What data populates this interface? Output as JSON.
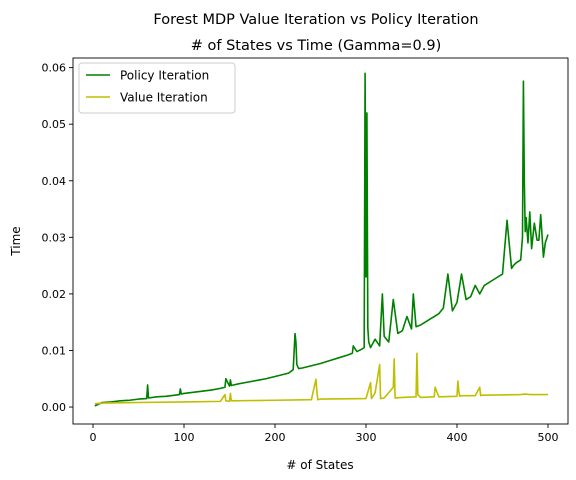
{
  "chart_data": {
    "type": "line",
    "title": "Forest MDP Value Iteration vs Policy Iteration",
    "subtitle": "# of States vs Time (Gamma=0.9)",
    "xlabel": "# of States",
    "ylabel": "Time",
    "xlim": [
      -22,
      522
    ],
    "ylim": [
      -0.003,
      0.0617
    ],
    "x_ticks": [
      0,
      100,
      200,
      300,
      400,
      500
    ],
    "x_tick_labels": [
      "0",
      "100",
      "200",
      "300",
      "400",
      "500"
    ],
    "y_ticks": [
      0.0,
      0.01,
      0.02,
      0.03,
      0.04,
      0.05,
      0.06
    ],
    "y_tick_labels": [
      "0.00",
      "0.01",
      "0.02",
      "0.03",
      "0.04",
      "0.05",
      "0.06"
    ],
    "grid": false,
    "legend": "top-left",
    "series": [
      {
        "name": "Policy Iteration",
        "color": "#008000",
        "x": [
          2,
          10,
          20,
          30,
          40,
          50,
          59,
          60,
          61,
          70,
          80,
          90,
          95,
          96,
          97,
          100,
          110,
          120,
          130,
          140,
          145,
          146,
          150,
          151,
          152,
          160,
          170,
          180,
          190,
          200,
          210,
          215,
          220,
          222,
          223,
          224,
          226,
          230,
          240,
          250,
          260,
          270,
          280,
          285,
          286,
          290,
          295,
          298,
          299,
          300,
          301,
          302,
          303,
          305,
          310,
          315,
          318,
          320,
          325,
          330,
          335,
          340,
          345,
          350,
          352,
          355,
          360,
          365,
          370,
          375,
          380,
          385,
          390,
          395,
          400,
          405,
          410,
          415,
          420,
          425,
          430,
          440,
          450,
          455,
          460,
          462,
          465,
          470,
          472,
          473,
          474,
          475,
          476,
          478,
          480,
          482,
          485,
          488,
          490,
          492,
          495,
          497,
          500
        ],
        "y": [
          0.0002,
          0.0008,
          0.0009,
          0.0011,
          0.0012,
          0.0014,
          0.0015,
          0.0039,
          0.0016,
          0.0018,
          0.0019,
          0.0021,
          0.0022,
          0.0032,
          0.0023,
          0.0024,
          0.0026,
          0.0028,
          0.003,
          0.0033,
          0.0035,
          0.005,
          0.0037,
          0.0048,
          0.0038,
          0.0041,
          0.0044,
          0.0047,
          0.005,
          0.0054,
          0.0058,
          0.006,
          0.0066,
          0.013,
          0.0115,
          0.0075,
          0.0068,
          0.0069,
          0.0073,
          0.0077,
          0.0082,
          0.0087,
          0.0092,
          0.0095,
          0.0108,
          0.0098,
          0.0102,
          0.0105,
          0.059,
          0.023,
          0.052,
          0.014,
          0.0115,
          0.0105,
          0.012,
          0.0108,
          0.02,
          0.0125,
          0.0115,
          0.019,
          0.013,
          0.0135,
          0.016,
          0.0138,
          0.02,
          0.0142,
          0.0145,
          0.015,
          0.0155,
          0.016,
          0.0165,
          0.0175,
          0.0235,
          0.017,
          0.0185,
          0.0235,
          0.019,
          0.0195,
          0.0215,
          0.02,
          0.0215,
          0.0225,
          0.0235,
          0.033,
          0.0245,
          0.025,
          0.0255,
          0.026,
          0.03,
          0.0576,
          0.04,
          0.031,
          0.0335,
          0.029,
          0.0345,
          0.028,
          0.0325,
          0.0295,
          0.0295,
          0.034,
          0.0265,
          0.029,
          0.0305
        ]
      },
      {
        "name": "Value Iteration",
        "color": "#bfbf00",
        "x": [
          2,
          10,
          50,
          100,
          140,
          145,
          146,
          150,
          151,
          152,
          200,
          240,
          245,
          246,
          247,
          250,
          300,
          305,
          306,
          310,
          315,
          316,
          320,
          330,
          331,
          332,
          340,
          355,
          356,
          357,
          360,
          375,
          376,
          380,
          400,
          401,
          402,
          403,
          404,
          420,
          425,
          426,
          427,
          430,
          470,
          475,
          480,
          500
        ],
        "y": [
          0.0006,
          0.0007,
          0.0008,
          0.0009,
          0.001,
          0.0022,
          0.0011,
          0.001,
          0.0024,
          0.0011,
          0.0012,
          0.0013,
          0.0049,
          0.0028,
          0.0013,
          0.0014,
          0.0015,
          0.0043,
          0.0015,
          0.0025,
          0.0075,
          0.0015,
          0.0016,
          0.0035,
          0.0085,
          0.0016,
          0.0017,
          0.0018,
          0.0095,
          0.0022,
          0.0017,
          0.0018,
          0.0035,
          0.0018,
          0.0019,
          0.0046,
          0.0028,
          0.0019,
          0.002,
          0.002,
          0.0035,
          0.002,
          0.0021,
          0.0021,
          0.0022,
          0.0023,
          0.0022,
          0.0022
        ]
      }
    ]
  }
}
